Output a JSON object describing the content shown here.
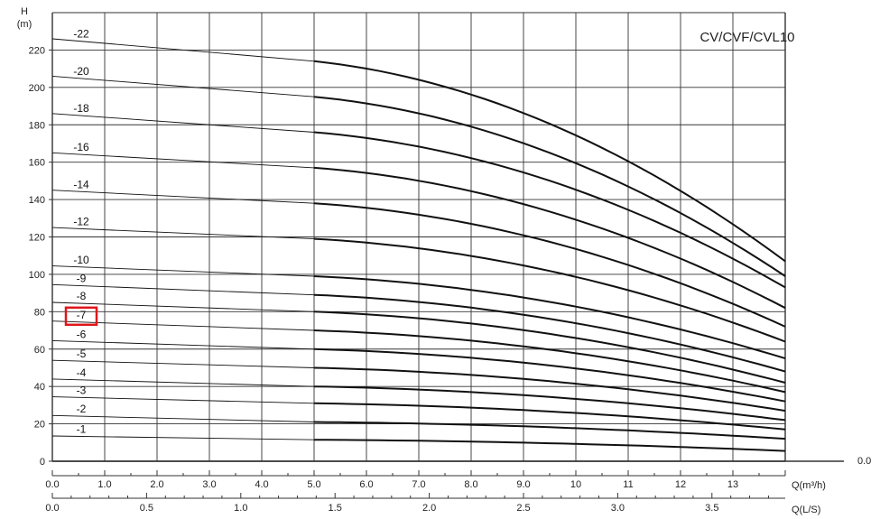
{
  "chart_data": {
    "type": "line",
    "title": "CV/CVF/CVL10",
    "ylabel_line1": "H",
    "ylabel_line2": "(m)",
    "xlabel_m3h": "Q(m³/h)",
    "xlabel_ls": "Q(L/S)",
    "xlim": [
      0,
      14
    ],
    "ylim": [
      0,
      240
    ],
    "x_ticks_m3h": [
      {
        "v": 0,
        "label": "0.0"
      },
      {
        "v": 1,
        "label": "1.0"
      },
      {
        "v": 2,
        "label": "2.0"
      },
      {
        "v": 3,
        "label": "3.0"
      },
      {
        "v": 4,
        "label": "4.0"
      },
      {
        "v": 5,
        "label": "5.0"
      },
      {
        "v": 6,
        "label": "6.0"
      },
      {
        "v": 7,
        "label": "7.0"
      },
      {
        "v": 8,
        "label": "8.0"
      },
      {
        "v": 9,
        "label": "9.0"
      },
      {
        "v": 10,
        "label": "10"
      },
      {
        "v": 11,
        "label": "11"
      },
      {
        "v": 12,
        "label": "12"
      },
      {
        "v": 13,
        "label": "13"
      }
    ],
    "x_ticks_ls": [
      {
        "v": 0,
        "label": "0.0"
      },
      {
        "v": 0.5,
        "label": "0.5"
      },
      {
        "v": 1.0,
        "label": "1.0"
      },
      {
        "v": 1.5,
        "label": "1.5"
      },
      {
        "v": 2.0,
        "label": "2.0"
      },
      {
        "v": 2.5,
        "label": "2.5"
      },
      {
        "v": 3.0,
        "label": "3.0"
      },
      {
        "v": 3.5,
        "label": "3.5"
      }
    ],
    "y_ticks": [
      {
        "v": 0,
        "label": "0"
      },
      {
        "v": 20,
        "label": "20"
      },
      {
        "v": 40,
        "label": "40"
      },
      {
        "v": 60,
        "label": "60"
      },
      {
        "v": 80,
        "label": "80"
      },
      {
        "v": 100,
        "label": "100"
      },
      {
        "v": 120,
        "label": "120"
      },
      {
        "v": 140,
        "label": "140"
      },
      {
        "v": 160,
        "label": "160"
      },
      {
        "v": 180,
        "label": "180"
      },
      {
        "v": 200,
        "label": "200"
      },
      {
        "v": 220,
        "label": "220"
      }
    ],
    "right_tick_label": "0.0",
    "grid": true,
    "x_operating_range": [
      5,
      14
    ],
    "series": [
      {
        "name": "-1",
        "shutoff": 13.5,
        "h5": 11.5,
        "h14": 5.5
      },
      {
        "name": "-2",
        "shutoff": 24.5,
        "h5": 21,
        "h14": 12
      },
      {
        "name": "-3",
        "shutoff": 34.5,
        "h5": 31,
        "h14": 17
      },
      {
        "name": "-4",
        "shutoff": 44,
        "h5": 40,
        "h14": 22
      },
      {
        "name": "-5",
        "shutoff": 54,
        "h5": 50,
        "h14": 27
      },
      {
        "name": "-6",
        "shutoff": 64.5,
        "h5": 60,
        "h14": 32
      },
      {
        "name": "-7",
        "shutoff": 75,
        "h5": 70,
        "h14": 37
      },
      {
        "name": "-8",
        "shutoff": 85,
        "h5": 80,
        "h14": 42
      },
      {
        "name": "-9",
        "shutoff": 94.5,
        "h5": 89,
        "h14": 48
      },
      {
        "name": "-10",
        "shutoff": 104.5,
        "h5": 99,
        "h14": 55
      },
      {
        "name": "-12",
        "shutoff": 125,
        "h5": 119,
        "h14": 64
      },
      {
        "name": "-14",
        "shutoff": 145,
        "h5": 138,
        "h14": 72
      },
      {
        "name": "-16",
        "shutoff": 165,
        "h5": 157,
        "h14": 82
      },
      {
        "name": "-18",
        "shutoff": 186,
        "h5": 176,
        "h14": 93
      },
      {
        "name": "-20",
        "shutoff": 206,
        "h5": 195,
        "h14": 99
      },
      {
        "name": "-22",
        "shutoff": 226,
        "h5": 214,
        "h14": 107
      }
    ],
    "highlighted_series": "-7",
    "highlight_color": "#e0161b",
    "line_color": "#111111",
    "grid_color": "#333333"
  }
}
